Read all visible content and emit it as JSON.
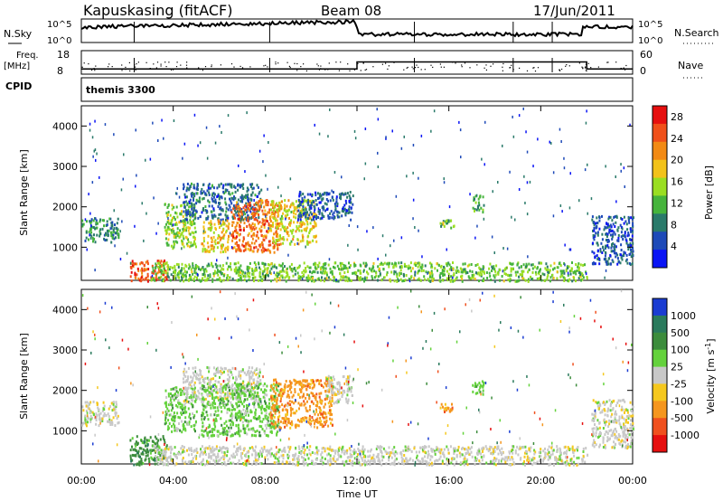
{
  "header": {
    "station": "Kapuskasing (fitACF)",
    "beam": "Beam 08",
    "date": "17/Jun/2011"
  },
  "top_panels": {
    "nsky_label": "N.Sky",
    "nsearch_label": "N.Search",
    "freq_label_1": "Freq.",
    "freq_label_2": "[MHz]",
    "nave_label": "Nave",
    "cpid_label": "CPID",
    "cpid_value": "themis 3300",
    "nsky_ticks": [
      "10^5",
      "10^0"
    ],
    "nsearch_ticks": [
      "10^5",
      "10^0"
    ],
    "freq_ticks": [
      "18",
      "8"
    ],
    "nave_ticks": [
      "60",
      "0"
    ],
    "freq_levels_mhz": [
      {
        "t0": 0.0,
        "t1": 12.0,
        "value": 10.2
      },
      {
        "t0": 12.0,
        "t1": 22.0,
        "value": 13.2
      },
      {
        "t0": 22.0,
        "t1": 24.0,
        "value": 10.2
      }
    ]
  },
  "chart_data": [
    {
      "type": "heatmap",
      "ylabel": "Slant Range [km]",
      "xlabel": "Time UT",
      "xlim": [
        0,
        24
      ],
      "ylim": [
        180,
        4500
      ],
      "xticks": [
        "00:00",
        "04:00",
        "08:00",
        "12:00",
        "16:00",
        "20:00",
        "00:00"
      ],
      "yticks": [
        1000,
        2000,
        3000,
        4000
      ],
      "colorbar": {
        "label": "Power [dB]",
        "ticks": [
          4,
          8,
          12,
          16,
          20,
          24,
          28
        ],
        "range": [
          0,
          30
        ],
        "colors": [
          "#0a14f5",
          "#1e4ab8",
          "#2a7a6a",
          "#46b43c",
          "#9ade22",
          "#f2c21a",
          "#f28a14",
          "#f0501a",
          "#e60f0f"
        ]
      },
      "regions": [
        {
          "t0": 0.0,
          "t1": 1.6,
          "r0": 1150,
          "r1": 1750,
          "value": 9
        },
        {
          "t0": 2.1,
          "t1": 3.7,
          "r0": 180,
          "r1": 700,
          "value": 25
        },
        {
          "t0": 3.6,
          "t1": 5.0,
          "r0": 1000,
          "r1": 2100,
          "value": 14
        },
        {
          "t0": 4.4,
          "t1": 7.8,
          "r0": 1700,
          "r1": 2600,
          "value": 7
        },
        {
          "t0": 5.2,
          "t1": 6.4,
          "r0": 900,
          "r1": 1700,
          "value": 18
        },
        {
          "t0": 6.5,
          "t1": 8.6,
          "r0": 900,
          "r1": 2200,
          "value": 23
        },
        {
          "t0": 8.2,
          "t1": 10.2,
          "r0": 1100,
          "r1": 2200,
          "value": 17
        },
        {
          "t0": 9.4,
          "t1": 11.8,
          "r0": 1700,
          "r1": 2400,
          "value": 6
        },
        {
          "t0": 3.0,
          "t1": 22.0,
          "r0": 180,
          "r1": 650,
          "value": 13
        },
        {
          "t0": 15.6,
          "t1": 16.2,
          "r0": 1500,
          "r1": 1700,
          "value": 13
        },
        {
          "t0": 17.0,
          "t1": 17.5,
          "r0": 1900,
          "r1": 2300,
          "value": 11
        },
        {
          "t0": 22.2,
          "t1": 24.0,
          "r0": 600,
          "r1": 1800,
          "value": 6
        }
      ]
    },
    {
      "type": "heatmap",
      "ylabel": "Slant Range [km]",
      "xlabel": "Time UT",
      "xlim": [
        0,
        24
      ],
      "ylim": [
        180,
        4500
      ],
      "xticks": [
        "00:00",
        "04:00",
        "08:00",
        "12:00",
        "16:00",
        "20:00",
        "00:00"
      ],
      "yticks": [
        1000,
        2000,
        3000,
        4000
      ],
      "colorbar": {
        "label": "Velocity [m s^-1]",
        "ticks": [
          "1000",
          "500",
          "100",
          "25",
          "-25",
          "-100",
          "-500",
          "-1000"
        ],
        "colors": [
          "#1a3cd2",
          "#2a7a5c",
          "#3c8c3c",
          "#64d23c",
          "#c8c8c8",
          "#f5c81e",
          "#f5961e",
          "#f0501e",
          "#e60f0f"
        ]
      },
      "regions": [
        {
          "t0": 0.0,
          "t1": 1.6,
          "r0": 1150,
          "r1": 1750,
          "value": "-25..25"
        },
        {
          "t0": 2.1,
          "t1": 3.7,
          "r0": 180,
          "r1": 900,
          "value": "100..500"
        },
        {
          "t0": 3.6,
          "t1": 5.0,
          "r0": 1000,
          "r1": 2100,
          "value": "25..100"
        },
        {
          "t0": 4.4,
          "t1": 7.8,
          "r0": 1700,
          "r1": 2600,
          "value": "-25..25"
        },
        {
          "t0": 5.2,
          "t1": 8.6,
          "r0": 900,
          "r1": 2200,
          "value": "25..100"
        },
        {
          "t0": 8.2,
          "t1": 10.9,
          "r0": 1100,
          "r1": 2300,
          "value": "-100..-500"
        },
        {
          "t0": 10.6,
          "t1": 11.8,
          "r0": 1700,
          "r1": 2400,
          "value": "-25..25"
        },
        {
          "t0": 3.0,
          "t1": 22.0,
          "r0": 180,
          "r1": 650,
          "value": "-25..25"
        },
        {
          "t0": 15.6,
          "t1": 16.2,
          "r0": 1500,
          "r1": 1700,
          "value": "-100..-500"
        },
        {
          "t0": 17.0,
          "t1": 17.5,
          "r0": 1900,
          "r1": 2300,
          "value": "25..100"
        },
        {
          "t0": 22.2,
          "t1": 24.0,
          "r0": 600,
          "r1": 1800,
          "value": "-25..25"
        }
      ]
    }
  ]
}
